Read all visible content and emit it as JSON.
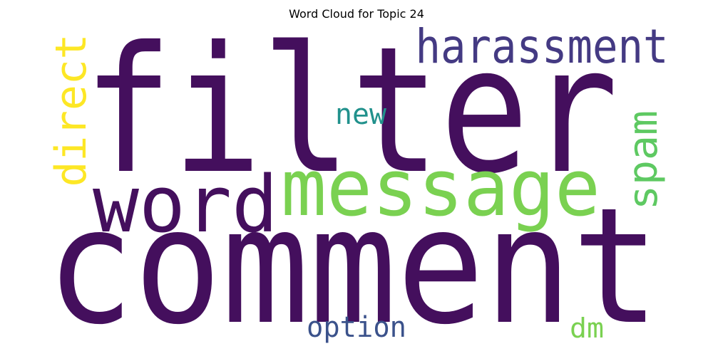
{
  "title": "Word Cloud for Topic 24",
  "colors": {
    "background": "#ffffff",
    "title": "#000000"
  },
  "words": [
    {
      "key": "filter",
      "text": "filter",
      "color": "#440f5d"
    },
    {
      "key": "comment",
      "text": "comment",
      "color": "#440f5d"
    },
    {
      "key": "message",
      "text": "message",
      "color": "#7ad151"
    },
    {
      "key": "word",
      "text": "word",
      "color": "#440f5d"
    },
    {
      "key": "harassment",
      "text": "harassment",
      "color": "#443a83"
    },
    {
      "key": "direct",
      "text": "direct",
      "color": "#fde725"
    },
    {
      "key": "spam",
      "text": "spam",
      "color": "#5ec962"
    },
    {
      "key": "new",
      "text": "new",
      "color": "#21918c"
    },
    {
      "key": "option",
      "text": "option",
      "color": "#3b528b"
    },
    {
      "key": "dm",
      "text": "dm",
      "color": "#7ad151"
    }
  ]
}
